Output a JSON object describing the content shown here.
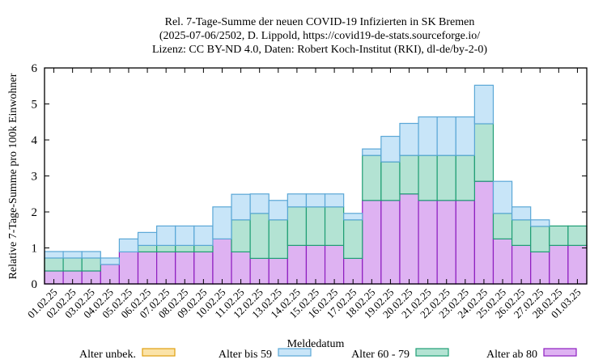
{
  "chart_data": {
    "type": "bar",
    "stacked": true,
    "title": [
      "Rel. 7-Tage-Summe der neuen COVID-19 Infizierten in SK Bremen",
      "(2025-07-06/2502, D. Lippold, https://covid19-de-stats.sourceforge.io/",
      "Lizenz: CC BY-ND 4.0, Daten: Robert Koch-Institut (RKI), dl-de/by-2-0)"
    ],
    "xlabel": "Meldedatum",
    "ylabel": "Relative 7-Tage-Summe pro 100k Einwohner",
    "ylim": [
      0,
      6
    ],
    "yticks": [
      0,
      1,
      2,
      3,
      4,
      5,
      6
    ],
    "categories": [
      "01.02.25",
      "02.02.25",
      "03.02.25",
      "04.02.25",
      "05.02.25",
      "06.02.25",
      "07.02.25",
      "08.02.25",
      "09.02.25",
      "10.02.25",
      "11.02.25",
      "12.02.25",
      "13.02.25",
      "14.02.25",
      "15.02.25",
      "16.02.25",
      "17.02.25",
      "18.02.25",
      "19.02.25",
      "20.02.25",
      "21.02.25",
      "22.02.25",
      "23.02.25",
      "24.02.25",
      "25.02.25",
      "26.02.25",
      "27.02.25",
      "28.02.25",
      "01.03.25"
    ],
    "series": [
      {
        "name": "Alter unbek.",
        "fill": "#fbe3a8",
        "stroke": "#e0a010",
        "values": [
          0,
          0,
          0,
          0,
          0,
          0,
          0,
          0,
          0,
          0,
          0,
          0,
          0,
          0,
          0,
          0,
          0,
          0,
          0,
          0,
          0,
          0,
          0,
          0,
          0,
          0,
          0,
          0,
          0
        ]
      },
      {
        "name": "Alter bis 59",
        "fill": "#c8e5f8",
        "stroke": "#5aa7d6",
        "values": [
          0.18,
          0.18,
          0.18,
          0.18,
          0.36,
          0.36,
          0.54,
          0.54,
          0.54,
          0.89,
          0.71,
          0.54,
          0.54,
          0.36,
          0.36,
          0.36,
          0.18,
          0.18,
          0.71,
          0.89,
          1.07,
          1.07,
          1.07,
          1.07,
          0.89,
          0.36,
          0.18,
          0,
          0
        ]
      },
      {
        "name": "Alter 60 - 79",
        "fill": "#b3e3d3",
        "stroke": "#1f9e74",
        "values": [
          0.36,
          0.36,
          0.36,
          0,
          0,
          0.18,
          0.18,
          0.18,
          0.18,
          0,
          0.89,
          1.25,
          1.07,
          1.07,
          1.07,
          1.07,
          1.07,
          1.25,
          1.07,
          1.07,
          1.25,
          1.25,
          1.25,
          1.6,
          0.71,
          0.71,
          0.71,
          0.54,
          0.54
        ]
      },
      {
        "name": "Alter ab 80",
        "fill": "#deb2f2",
        "stroke": "#8e1ec0",
        "values": [
          0.36,
          0.36,
          0.36,
          0.54,
          0.89,
          0.89,
          0.89,
          0.89,
          0.89,
          1.25,
          0.89,
          0.71,
          0.71,
          1.07,
          1.07,
          1.07,
          0.71,
          2.32,
          2.32,
          2.5,
          2.32,
          2.32,
          2.32,
          2.85,
          1.25,
          1.07,
          0.89,
          1.07,
          1.07
        ]
      }
    ],
    "legend_position": "bottom"
  }
}
